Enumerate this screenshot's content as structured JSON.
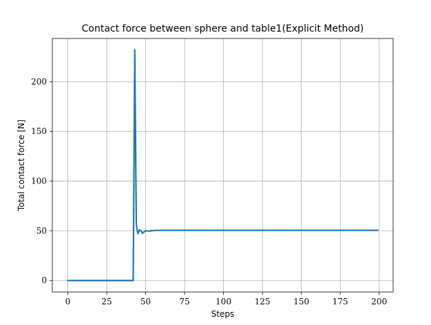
{
  "chart_data": {
    "type": "line",
    "title": "Contact force between sphere and table1(Explicit Method)",
    "xlabel": "Steps",
    "ylabel": "Total contact force [N]",
    "xlim": [
      -9.95,
      208.95
    ],
    "ylim": [
      -11.6,
      243.5
    ],
    "xticks": [
      0,
      25,
      50,
      75,
      100,
      125,
      150,
      175,
      200
    ],
    "yticks": [
      0,
      50,
      100,
      150,
      200
    ],
    "grid": true,
    "legend": "none",
    "series": [
      {
        "color": "#1f77b4",
        "x": [
          0,
          10,
          20,
          30,
          40,
          41,
          42,
          43,
          44,
          45,
          46,
          47,
          48,
          49,
          50,
          51,
          52,
          53,
          54,
          55,
          58,
          62,
          70,
          80,
          100,
          125,
          150,
          175,
          199
        ],
        "y": [
          0,
          0,
          0,
          0,
          0,
          0,
          0,
          232,
          56,
          47,
          51,
          50,
          47.5,
          49,
          49.8,
          50,
          49.6,
          50.1,
          50,
          50.3,
          50.4,
          50.5,
          50.5,
          50.5,
          50.5,
          50.5,
          50.5,
          50.5,
          50.5
        ]
      }
    ]
  }
}
